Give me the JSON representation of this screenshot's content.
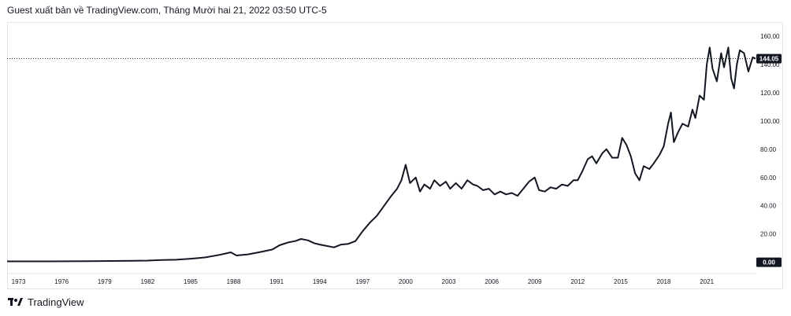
{
  "header": {
    "text": "Guest xuất bản về TradingView.com, Tháng Mười hai 21, 2022 03:50 UTC-5"
  },
  "footer": {
    "brand": "TradingView",
    "logo_icon": "tradingview-logo-icon"
  },
  "colors": {
    "line": "#131722",
    "tag_bg": "#131722",
    "border": "#e0e3eb"
  },
  "chart_data": {
    "type": "line",
    "title": "",
    "xlabel": "",
    "ylabel": "",
    "xlim": [
      1972.2,
      2024.4
    ],
    "ylim": [
      -8,
      170
    ],
    "x_ticks": [
      "1973",
      "1976",
      "1979",
      "1982",
      "1985",
      "1988",
      "1991",
      "1994",
      "1997",
      "2000",
      "2003",
      "2006",
      "2009",
      "2012",
      "2015",
      "2018",
      "2021"
    ],
    "y_ticks": [
      "160.00",
      "140.00",
      "120.00",
      "100.00",
      "80.00",
      "60.00",
      "40.00",
      "20.00",
      "0.00"
    ],
    "last_price": "144.05",
    "zero_tag": "0.00",
    "grid": false,
    "series": [
      {
        "values": [
          [
            1972.2,
            0.6
          ],
          [
            1975.0,
            0.6
          ],
          [
            1978.0,
            0.8
          ],
          [
            1981.0,
            1.0
          ],
          [
            1982.0,
            1.2
          ],
          [
            1983.0,
            1.6
          ],
          [
            1984.0,
            1.8
          ],
          [
            1985.0,
            2.5
          ],
          [
            1986.0,
            3.4
          ],
          [
            1987.0,
            5.2
          ],
          [
            1987.8,
            7.0
          ],
          [
            1988.2,
            4.8
          ],
          [
            1989.0,
            5.6
          ],
          [
            1990.0,
            7.5
          ],
          [
            1990.7,
            9.0
          ],
          [
            1991.2,
            12.0
          ],
          [
            1991.8,
            14.0
          ],
          [
            1992.3,
            15.0
          ],
          [
            1992.7,
            16.5
          ],
          [
            1993.2,
            15.5
          ],
          [
            1993.6,
            13.5
          ],
          [
            1994.0,
            12.5
          ],
          [
            1994.5,
            11.5
          ],
          [
            1995.0,
            10.5
          ],
          [
            1995.5,
            12.5
          ],
          [
            1996.0,
            13.0
          ],
          [
            1996.5,
            15.0
          ],
          [
            1997.0,
            22.0
          ],
          [
            1997.5,
            28.0
          ],
          [
            1998.0,
            33.0
          ],
          [
            1998.5,
            40.0
          ],
          [
            1999.0,
            47.0
          ],
          [
            1999.4,
            52.0
          ],
          [
            1999.7,
            58.0
          ],
          [
            2000.0,
            69.0
          ],
          [
            2000.3,
            56.0
          ],
          [
            2000.7,
            60.0
          ],
          [
            2001.0,
            50.0
          ],
          [
            2001.3,
            55.0
          ],
          [
            2001.7,
            52.0
          ],
          [
            2002.0,
            58.0
          ],
          [
            2002.4,
            54.0
          ],
          [
            2002.8,
            57.0
          ],
          [
            2003.1,
            52.0
          ],
          [
            2003.5,
            56.0
          ],
          [
            2003.9,
            52.0
          ],
          [
            2004.3,
            58.0
          ],
          [
            2004.7,
            55.0
          ],
          [
            2005.0,
            54.0
          ],
          [
            2005.4,
            51.0
          ],
          [
            2005.8,
            52.0
          ],
          [
            2006.2,
            48.0
          ],
          [
            2006.6,
            50.0
          ],
          [
            2007.0,
            48.0
          ],
          [
            2007.4,
            49.0
          ],
          [
            2007.8,
            47.0
          ],
          [
            2008.2,
            52.0
          ],
          [
            2008.6,
            57.0
          ],
          [
            2009.0,
            60.0
          ],
          [
            2009.3,
            51.0
          ],
          [
            2009.7,
            50.0
          ],
          [
            2010.1,
            53.0
          ],
          [
            2010.5,
            52.0
          ],
          [
            2010.9,
            55.0
          ],
          [
            2011.3,
            54.0
          ],
          [
            2011.7,
            58.0
          ],
          [
            2012.0,
            58.0
          ],
          [
            2012.3,
            64.0
          ],
          [
            2012.7,
            73.0
          ],
          [
            2013.0,
            75.0
          ],
          [
            2013.3,
            70.0
          ],
          [
            2013.7,
            77.0
          ],
          [
            2014.0,
            80.0
          ],
          [
            2014.4,
            74.0
          ],
          [
            2014.8,
            74.0
          ],
          [
            2015.1,
            88.0
          ],
          [
            2015.4,
            83.0
          ],
          [
            2015.7,
            75.0
          ],
          [
            2016.0,
            63.0
          ],
          [
            2016.3,
            58.0
          ],
          [
            2016.6,
            68.0
          ],
          [
            2017.0,
            66.0
          ],
          [
            2017.3,
            70.0
          ],
          [
            2017.7,
            76.0
          ],
          [
            2018.0,
            82.0
          ],
          [
            2018.3,
            98.0
          ],
          [
            2018.5,
            106.0
          ],
          [
            2018.7,
            85.0
          ],
          [
            2019.0,
            92.0
          ],
          [
            2019.3,
            98.0
          ],
          [
            2019.7,
            96.0
          ],
          [
            2020.0,
            108.0
          ],
          [
            2020.2,
            102.0
          ],
          [
            2020.5,
            118.0
          ],
          [
            2020.8,
            115.0
          ],
          [
            2021.0,
            140.0
          ],
          [
            2021.2,
            152.0
          ],
          [
            2021.4,
            137.0
          ],
          [
            2021.7,
            128.0
          ],
          [
            2022.0,
            148.0
          ],
          [
            2022.2,
            138.0
          ],
          [
            2022.5,
            152.0
          ],
          [
            2022.7,
            130.0
          ],
          [
            2022.9,
            123.0
          ],
          [
            2023.1,
            140.0
          ],
          [
            2023.3,
            150.0
          ],
          [
            2023.6,
            148.0
          ],
          [
            2023.9,
            135.0
          ],
          [
            2024.2,
            145.0
          ],
          [
            2024.4,
            144.05
          ]
        ]
      }
    ]
  }
}
